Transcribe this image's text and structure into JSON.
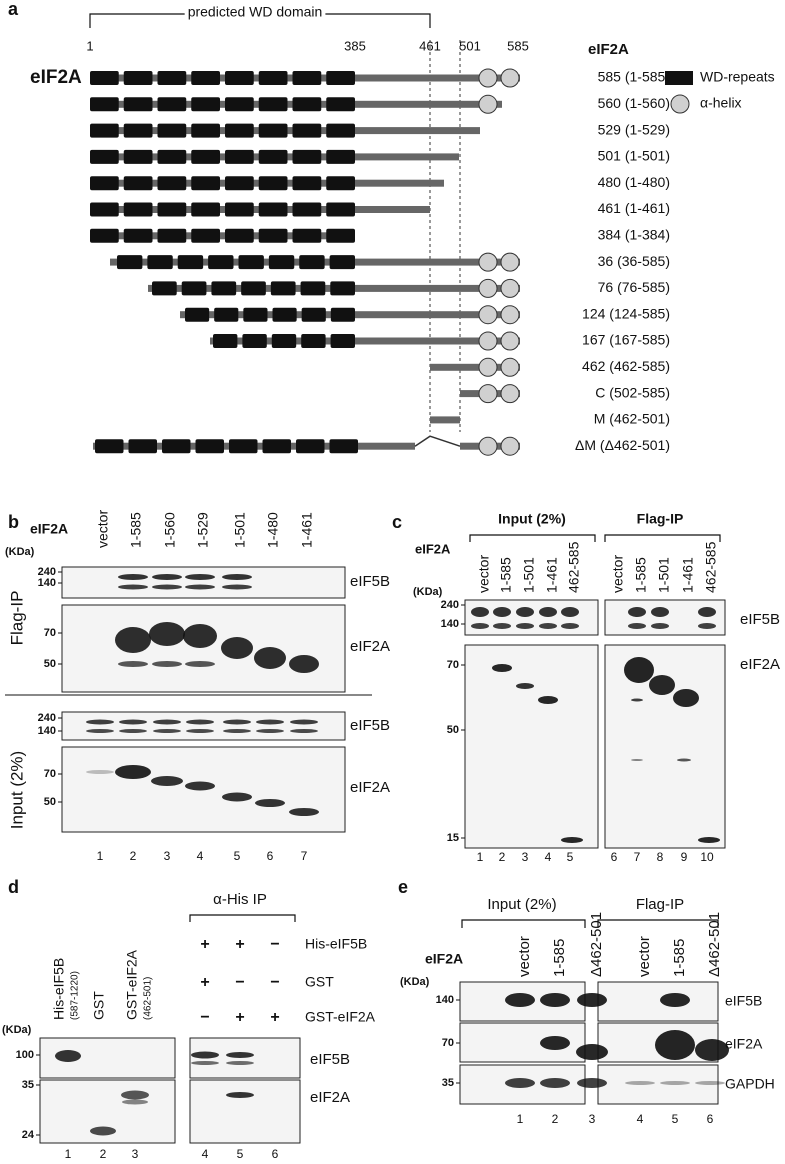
{
  "panel_a": {
    "letter": "a",
    "domain_label": "predicted WD domain",
    "positions": [
      1,
      385,
      461,
      501,
      585
    ],
    "protein": "eIF2A",
    "legend": {
      "title": "eIF2A",
      "items": [
        "WD-repeats",
        "α-helix"
      ]
    },
    "constructs": [
      "585 (1-585)",
      "560 (1-560)",
      "529 (1-529)",
      "501 (1-501)",
      "480 (1-480)",
      "461 (1-461)",
      "384 (1-384)",
      "36 (36-585)",
      "76 (76-585)",
      "124 (124-585)",
      "167 (167-585)",
      "462 (462-585)",
      "C (502-585)",
      "M (462-501)",
      "ΔM (Δ462-501)"
    ]
  },
  "panel_b": {
    "letter": "b",
    "construct_label": "eIF2A",
    "lanes": [
      "vector",
      "1-585",
      "1-560",
      "1-529",
      "1-501",
      "1-480",
      "1-461"
    ],
    "unit": "(KDa)",
    "sections": [
      {
        "label": "Flag-IP",
        "blots": [
          {
            "markers": [
              240,
              140
            ],
            "label": "eIF5B"
          },
          {
            "markers": [
              70,
              50
            ],
            "label": "eIF2A"
          }
        ]
      },
      {
        "label": "Input (2%)",
        "blots": [
          {
            "markers": [
              240,
              140
            ],
            "label": "eIF5B"
          },
          {
            "markers": [
              70,
              50
            ],
            "label": "eIF2A"
          }
        ]
      }
    ],
    "lane_numbers": [
      1,
      2,
      3,
      4,
      5,
      6,
      7
    ]
  },
  "panel_c": {
    "letter": "c",
    "construct_label": "eIF2A",
    "unit": "(KDa)",
    "groups": [
      {
        "label": "Input (2%)",
        "lanes": [
          "vector",
          "1-585",
          "1-501",
          "1-461",
          "462-585"
        ],
        "lane_numbers": [
          1,
          2,
          3,
          4,
          5
        ]
      },
      {
        "label": "Flag-IP",
        "lanes": [
          "vector",
          "1-585",
          "1-501",
          "1-461",
          "462-585"
        ],
        "lane_numbers": [
          6,
          7,
          8,
          9,
          10
        ]
      }
    ],
    "blots": [
      {
        "markers": [
          240,
          140
        ],
        "label": "eIF5B"
      },
      {
        "markers": [
          70,
          50,
          15
        ],
        "label": "eIF2A"
      }
    ]
  },
  "panel_d": {
    "letter": "d",
    "lanes": [
      {
        "name": "His-eIF5B",
        "range": "(587-1220)"
      },
      {
        "name": "GST"
      },
      {
        "name": "GST-eIF2A",
        "range": "(462-501)"
      }
    ],
    "ip_label": "α-His IP",
    "conditions": [
      {
        "name": "His-eIF5B",
        "signs": [
          "+",
          "+",
          "−"
        ]
      },
      {
        "name": "GST",
        "signs": [
          "+",
          "−",
          "−"
        ]
      },
      {
        "name": "GST-eIF2A",
        "signs": [
          "−",
          "+",
          "+"
        ]
      }
    ],
    "unit": "(KDa)",
    "blots": [
      {
        "markers": [
          100
        ],
        "label": "eIF5B"
      },
      {
        "markers": [
          35,
          24
        ],
        "label": "eIF2A"
      }
    ],
    "lane_numbers": [
      1,
      2,
      3,
      4,
      5,
      6
    ]
  },
  "panel_e": {
    "letter": "e",
    "construct_label": "eIF2A",
    "unit": "(KDa)",
    "groups": [
      {
        "label": "Input (2%)",
        "lanes": [
          "vector",
          "1-585",
          "Δ462-501"
        ],
        "lane_numbers": [
          1,
          2,
          3
        ]
      },
      {
        "label": "Flag-IP",
        "lanes": [
          "vector",
          "1-585",
          "Δ462-501"
        ],
        "lane_numbers": [
          4,
          5,
          6
        ]
      }
    ],
    "blots": [
      {
        "markers": [
          140
        ],
        "label": "eIF5B"
      },
      {
        "markers": [
          70
        ],
        "label": "eIF2A"
      },
      {
        "markers": [
          35
        ],
        "label": "GAPDH"
      }
    ]
  }
}
